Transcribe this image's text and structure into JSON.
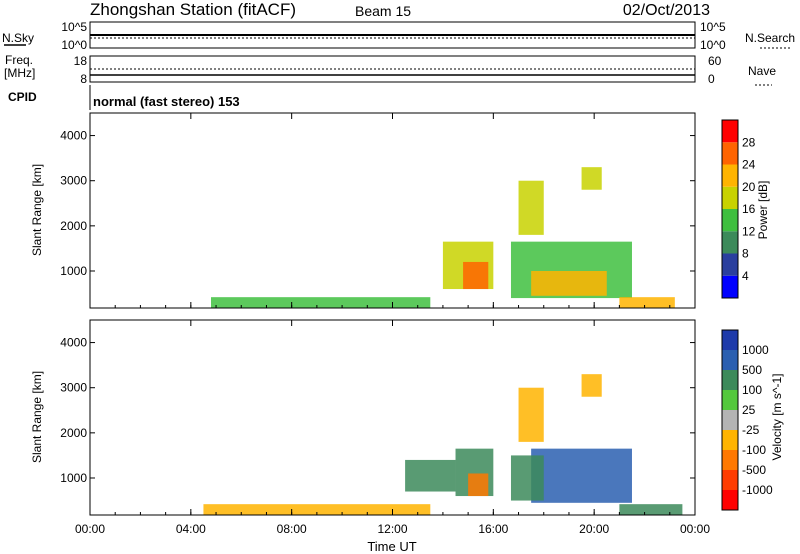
{
  "header": {
    "title": "Zhongshan Station (fitACF)",
    "beam": "Beam 15",
    "date": "02/Oct/2013"
  },
  "nsky_panel": {
    "left_label": "N.Sky",
    "right_label": "N.Search",
    "left_ticks": [
      "10^5",
      "10^0"
    ],
    "right_ticks": [
      "10^5",
      "10^0"
    ]
  },
  "freq_panel": {
    "left_label_1": "Freq.",
    "left_label_2": "[MHz]",
    "right_label": "Nave",
    "left_ticks": [
      "18",
      "8"
    ],
    "right_ticks": [
      "60",
      "0"
    ]
  },
  "cpid": {
    "label": "CPID",
    "text": "normal (fast stereo) 153"
  },
  "colors": {
    "power": [
      "#0000ff",
      "#2a3f9e",
      "#3c8a5a",
      "#3fbf3f",
      "#c8d200",
      "#ffb400",
      "#ff6400",
      "#ff0000"
    ],
    "velocity": [
      "#1e3aaa",
      "#2a5fb0",
      "#3c8a5a",
      "#54c83c",
      "#b4b4b4",
      "#ffb400",
      "#ff7800",
      "#ff3c00",
      "#ff0000"
    ]
  },
  "chart_data": [
    {
      "type": "heatmap",
      "title": "",
      "xlabel": "",
      "ylabel": "Slant Range [km]",
      "xlim": [
        0,
        24
      ],
      "ylim": [
        180,
        4500
      ],
      "yticks": [
        1000,
        2000,
        3000,
        4000
      ],
      "colorbar": {
        "label": "Power [dB]",
        "ticks": [
          "4",
          "8",
          "12",
          "16",
          "20",
          "24",
          "28"
        ],
        "range": [
          0,
          30
        ]
      },
      "regions": [
        {
          "t": [
            4.8,
            13.5
          ],
          "r": [
            180,
            420
          ],
          "value": 12
        },
        {
          "t": [
            14.0,
            16.0
          ],
          "r": [
            600,
            1650
          ],
          "value": 18
        },
        {
          "t": [
            14.8,
            15.8
          ],
          "r": [
            600,
            1200
          ],
          "value": 24
        },
        {
          "t": [
            16.7,
            21.5
          ],
          "r": [
            400,
            1650
          ],
          "value": 14
        },
        {
          "t": [
            17.5,
            20.5
          ],
          "r": [
            450,
            1000
          ],
          "value": 22
        },
        {
          "t": [
            21.0,
            23.2
          ],
          "r": [
            180,
            420
          ],
          "value": 20
        },
        {
          "t": [
            17.0,
            18.0
          ],
          "r": [
            1800,
            3000
          ],
          "value": 18
        },
        {
          "t": [
            19.5,
            20.3
          ],
          "r": [
            2800,
            3300
          ],
          "value": 18
        }
      ]
    },
    {
      "type": "heatmap",
      "title": "",
      "xlabel": "Time UT",
      "ylabel": "Slant Range [km]",
      "xlim": [
        0,
        24
      ],
      "ylim": [
        180,
        4500
      ],
      "yticks": [
        1000,
        2000,
        3000,
        4000
      ],
      "xticks": [
        "00:00",
        "04:00",
        "08:00",
        "12:00",
        "16:00",
        "20:00",
        "00:00"
      ],
      "colorbar": {
        "label": "Velocity [m s^-1]",
        "ticks": [
          "1000",
          "500",
          "100",
          "25",
          "-25",
          "-100",
          "-500",
          "-1000"
        ],
        "range": [
          -1000,
          1000
        ]
      },
      "regions": [
        {
          "t": [
            4.5,
            13.5
          ],
          "r": [
            180,
            420
          ],
          "value": -100
        },
        {
          "t": [
            12.5,
            14.5
          ],
          "r": [
            700,
            1400
          ],
          "value": 300
        },
        {
          "t": [
            14.5,
            16.0
          ],
          "r": [
            600,
            1650
          ],
          "value": 100
        },
        {
          "t": [
            15.0,
            15.8
          ],
          "r": [
            600,
            1100
          ],
          "value": -300
        },
        {
          "t": [
            17.5,
            21.5
          ],
          "r": [
            450,
            1650
          ],
          "value": 800
        },
        {
          "t": [
            16.7,
            18.0
          ],
          "r": [
            500,
            1500
          ],
          "value": 100
        },
        {
          "t": [
            21.0,
            23.5
          ],
          "r": [
            180,
            420
          ],
          "value": 100
        },
        {
          "t": [
            17.0,
            18.0
          ],
          "r": [
            1800,
            3000
          ],
          "value": -100
        },
        {
          "t": [
            19.5,
            20.3
          ],
          "r": [
            2800,
            3300
          ],
          "value": -100
        }
      ]
    }
  ]
}
